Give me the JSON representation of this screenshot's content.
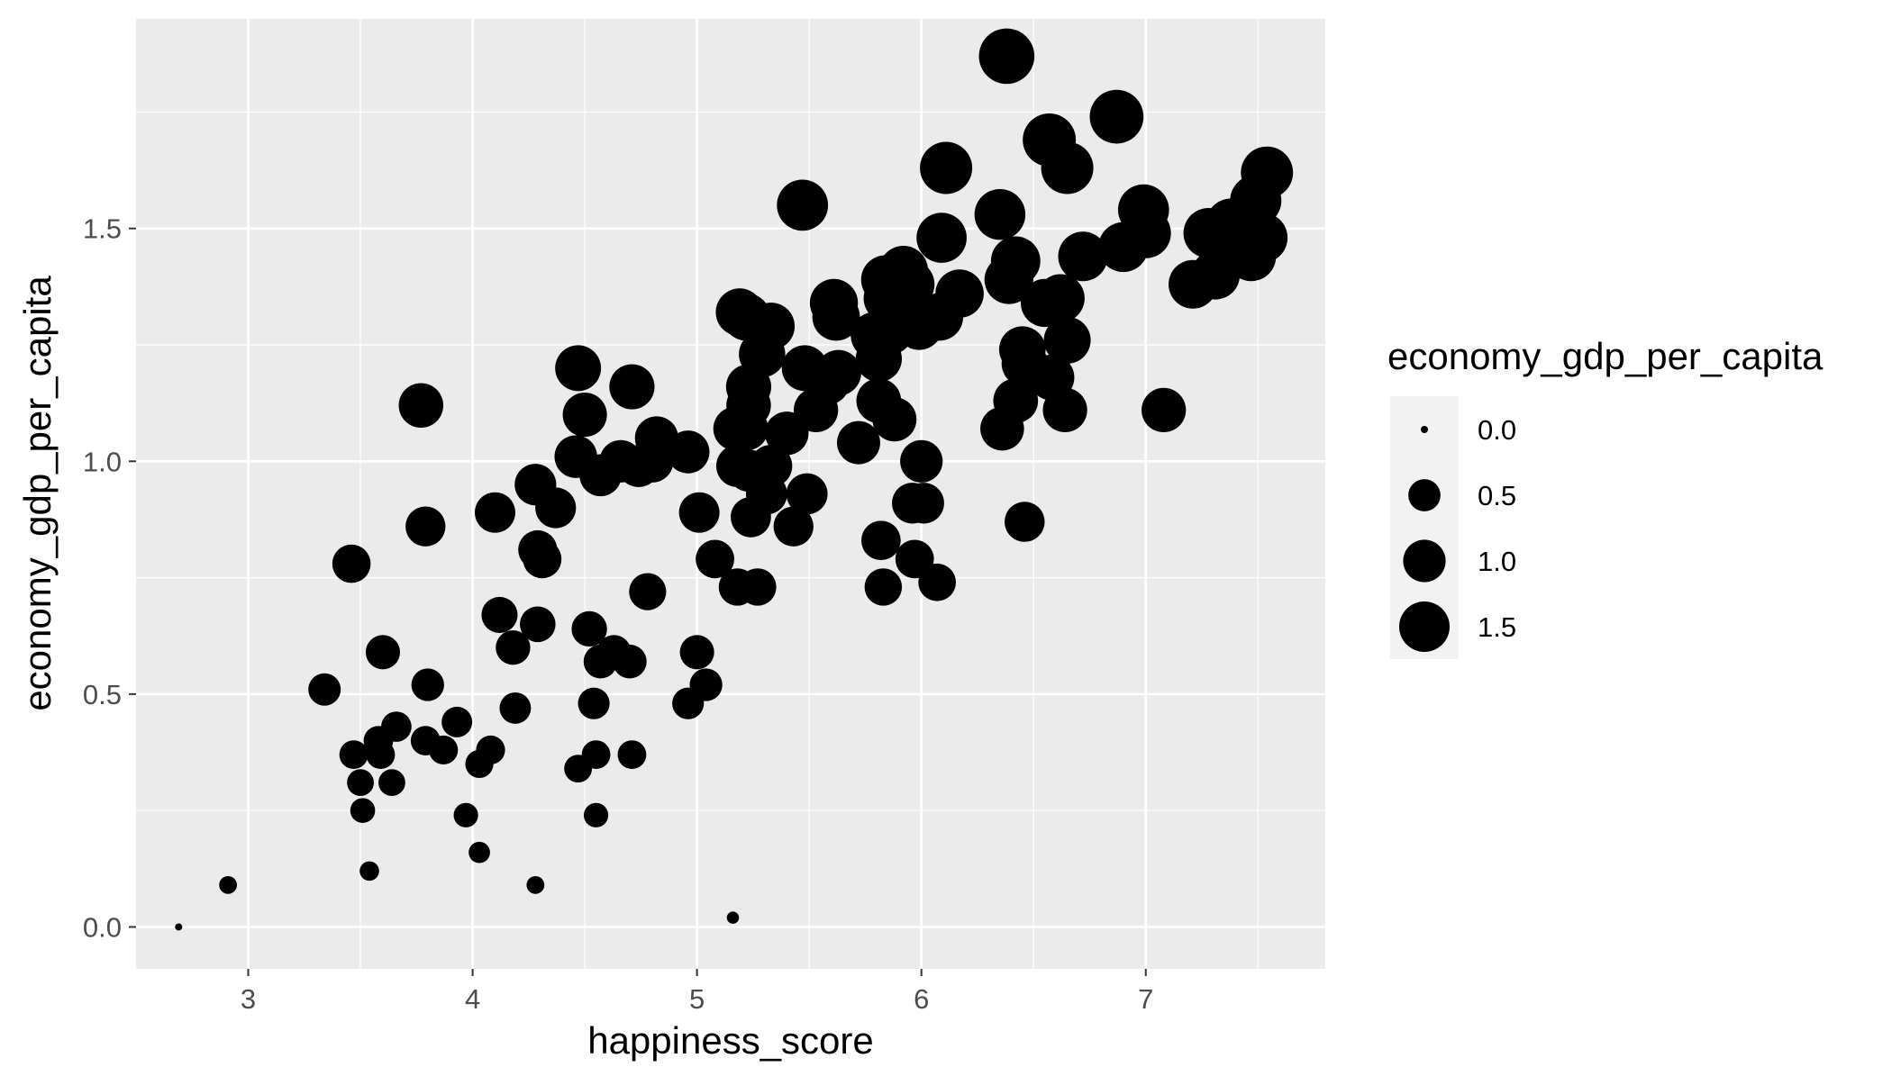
{
  "chart_data": {
    "type": "scatter",
    "xlabel": "happiness_score",
    "ylabel": "economy_gdp_per_capita",
    "xlim": [
      2.5,
      7.8
    ],
    "ylim": [
      -0.09,
      1.95
    ],
    "x_ticks": [
      3,
      4,
      5,
      6,
      7
    ],
    "y_ticks": [
      0.0,
      0.5,
      1.0,
      1.5
    ],
    "x_tick_labels": [
      "3",
      "4",
      "5",
      "6",
      "7"
    ],
    "y_tick_labels": [
      "0.0",
      "0.5",
      "1.0",
      "1.5"
    ],
    "grid": true,
    "point_color": "#000000",
    "panel_background": "#ebebeb",
    "size_encoding": "economy_gdp_per_capita",
    "legend": {
      "title": "economy_gdp_per_capita",
      "position": "right",
      "entries": [
        {
          "label": "0.0",
          "value": 0.0
        },
        {
          "label": "0.5",
          "value": 0.5
        },
        {
          "label": "1.0",
          "value": 1.0
        },
        {
          "label": "1.5",
          "value": 1.5
        }
      ]
    },
    "points": [
      {
        "x": 2.69,
        "y": 0.0
      },
      {
        "x": 2.91,
        "y": 0.09
      },
      {
        "x": 3.34,
        "y": 0.51
      },
      {
        "x": 3.46,
        "y": 0.78
      },
      {
        "x": 3.47,
        "y": 0.37
      },
      {
        "x": 3.5,
        "y": 0.31
      },
      {
        "x": 3.51,
        "y": 0.25
      },
      {
        "x": 3.54,
        "y": 0.12
      },
      {
        "x": 3.58,
        "y": 0.4
      },
      {
        "x": 3.59,
        "y": 0.37
      },
      {
        "x": 3.6,
        "y": 0.59
      },
      {
        "x": 3.64,
        "y": 0.31
      },
      {
        "x": 3.66,
        "y": 0.43
      },
      {
        "x": 3.77,
        "y": 1.12
      },
      {
        "x": 3.79,
        "y": 0.86
      },
      {
        "x": 3.79,
        "y": 0.4
      },
      {
        "x": 3.8,
        "y": 0.52
      },
      {
        "x": 3.87,
        "y": 0.38
      },
      {
        "x": 3.93,
        "y": 0.44
      },
      {
        "x": 3.97,
        "y": 0.24
      },
      {
        "x": 4.03,
        "y": 0.35
      },
      {
        "x": 4.03,
        "y": 0.16
      },
      {
        "x": 4.08,
        "y": 0.38
      },
      {
        "x": 4.1,
        "y": 0.89
      },
      {
        "x": 4.12,
        "y": 0.67
      },
      {
        "x": 4.18,
        "y": 0.6
      },
      {
        "x": 4.19,
        "y": 0.47
      },
      {
        "x": 4.28,
        "y": 0.95
      },
      {
        "x": 4.29,
        "y": 0.81
      },
      {
        "x": 4.31,
        "y": 0.79
      },
      {
        "x": 4.29,
        "y": 0.65
      },
      {
        "x": 4.28,
        "y": 0.09
      },
      {
        "x": 4.37,
        "y": 0.9
      },
      {
        "x": 4.46,
        "y": 1.01
      },
      {
        "x": 4.47,
        "y": 1.2
      },
      {
        "x": 4.47,
        "y": 0.34
      },
      {
        "x": 4.5,
        "y": 1.1
      },
      {
        "x": 4.52,
        "y": 0.64
      },
      {
        "x": 4.54,
        "y": 0.48
      },
      {
        "x": 4.55,
        "y": 0.37
      },
      {
        "x": 4.55,
        "y": 0.24
      },
      {
        "x": 4.57,
        "y": 0.97
      },
      {
        "x": 4.57,
        "y": 0.57
      },
      {
        "x": 4.63,
        "y": 0.59
      },
      {
        "x": 4.66,
        "y": 1.0
      },
      {
        "x": 4.71,
        "y": 1.16
      },
      {
        "x": 4.7,
        "y": 0.57
      },
      {
        "x": 4.71,
        "y": 0.37
      },
      {
        "x": 4.74,
        "y": 0.99
      },
      {
        "x": 4.78,
        "y": 0.72
      },
      {
        "x": 4.82,
        "y": 1.05
      },
      {
        "x": 4.8,
        "y": 1.0
      },
      {
        "x": 4.96,
        "y": 1.02
      },
      {
        "x": 4.96,
        "y": 0.48
      },
      {
        "x": 5.01,
        "y": 0.89
      },
      {
        "x": 5.0,
        "y": 0.59
      },
      {
        "x": 5.04,
        "y": 0.52
      },
      {
        "x": 5.08,
        "y": 0.79
      },
      {
        "x": 5.16,
        "y": 0.02
      },
      {
        "x": 5.17,
        "y": 1.07
      },
      {
        "x": 5.18,
        "y": 0.99
      },
      {
        "x": 5.18,
        "y": 0.73
      },
      {
        "x": 5.19,
        "y": 1.32
      },
      {
        "x": 5.22,
        "y": 1.31
      },
      {
        "x": 5.23,
        "y": 1.16
      },
      {
        "x": 5.23,
        "y": 1.12
      },
      {
        "x": 5.22,
        "y": 1.07
      },
      {
        "x": 5.23,
        "y": 0.98
      },
      {
        "x": 5.24,
        "y": 0.88
      },
      {
        "x": 5.27,
        "y": 0.73
      },
      {
        "x": 5.29,
        "y": 1.23
      },
      {
        "x": 5.31,
        "y": 0.93
      },
      {
        "x": 5.33,
        "y": 1.29
      },
      {
        "x": 5.33,
        "y": 0.99
      },
      {
        "x": 5.4,
        "y": 1.06
      },
      {
        "x": 5.43,
        "y": 0.86
      },
      {
        "x": 5.47,
        "y": 1.55
      },
      {
        "x": 5.48,
        "y": 1.2
      },
      {
        "x": 5.49,
        "y": 0.93
      },
      {
        "x": 5.53,
        "y": 1.11
      },
      {
        "x": 5.58,
        "y": 1.17
      },
      {
        "x": 5.61,
        "y": 1.34
      },
      {
        "x": 5.62,
        "y": 1.31
      },
      {
        "x": 5.63,
        "y": 1.19
      },
      {
        "x": 5.72,
        "y": 1.04
      },
      {
        "x": 5.79,
        "y": 1.27
      },
      {
        "x": 5.81,
        "y": 1.22
      },
      {
        "x": 5.81,
        "y": 1.13
      },
      {
        "x": 5.82,
        "y": 0.83
      },
      {
        "x": 5.83,
        "y": 0.73
      },
      {
        "x": 5.84,
        "y": 1.39
      },
      {
        "x": 5.85,
        "y": 1.35
      },
      {
        "x": 5.86,
        "y": 1.28
      },
      {
        "x": 5.88,
        "y": 1.09
      },
      {
        "x": 5.89,
        "y": 1.33
      },
      {
        "x": 5.92,
        "y": 1.41
      },
      {
        "x": 5.95,
        "y": 1.38
      },
      {
        "x": 5.96,
        "y": 0.91
      },
      {
        "x": 5.97,
        "y": 0.79
      },
      {
        "x": 5.99,
        "y": 1.29
      },
      {
        "x": 6.0,
        "y": 1.0
      },
      {
        "x": 6.01,
        "y": 0.91
      },
      {
        "x": 6.07,
        "y": 0.74
      },
      {
        "x": 6.08,
        "y": 1.31
      },
      {
        "x": 6.09,
        "y": 1.48
      },
      {
        "x": 6.11,
        "y": 1.63
      },
      {
        "x": 6.17,
        "y": 1.36
      },
      {
        "x": 6.35,
        "y": 1.53
      },
      {
        "x": 6.36,
        "y": 1.07
      },
      {
        "x": 6.38,
        "y": 1.87
      },
      {
        "x": 6.39,
        "y": 1.39
      },
      {
        "x": 6.42,
        "y": 1.43
      },
      {
        "x": 6.42,
        "y": 1.13
      },
      {
        "x": 6.45,
        "y": 1.24
      },
      {
        "x": 6.46,
        "y": 1.21
      },
      {
        "x": 6.46,
        "y": 0.87
      },
      {
        "x": 6.55,
        "y": 1.34
      },
      {
        "x": 6.57,
        "y": 1.69
      },
      {
        "x": 6.58,
        "y": 1.18
      },
      {
        "x": 6.62,
        "y": 1.35
      },
      {
        "x": 6.64,
        "y": 1.11
      },
      {
        "x": 6.65,
        "y": 1.63
      },
      {
        "x": 6.65,
        "y": 1.26
      },
      {
        "x": 6.72,
        "y": 1.44
      },
      {
        "x": 6.87,
        "y": 1.74
      },
      {
        "x": 6.9,
        "y": 1.46
      },
      {
        "x": 6.99,
        "y": 1.54
      },
      {
        "x": 7.0,
        "y": 1.49
      },
      {
        "x": 7.08,
        "y": 1.11
      },
      {
        "x": 7.21,
        "y": 1.38
      },
      {
        "x": 7.28,
        "y": 1.49
      },
      {
        "x": 7.31,
        "y": 1.4
      },
      {
        "x": 7.32,
        "y": 1.48
      },
      {
        "x": 7.38,
        "y": 1.51
      },
      {
        "x": 7.41,
        "y": 1.48
      },
      {
        "x": 7.47,
        "y": 1.44
      },
      {
        "x": 7.49,
        "y": 1.56
      },
      {
        "x": 7.52,
        "y": 1.48
      },
      {
        "x": 7.54,
        "y": 1.62
      }
    ]
  }
}
